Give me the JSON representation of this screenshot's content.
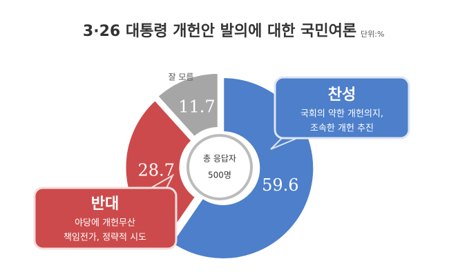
{
  "chart_data": {
    "type": "donut",
    "title": "3·26 대통령 개헌안 발의에 대한 국민여론",
    "unit": "단위:%",
    "categories": [
      "찬성",
      "반대",
      "잘 모름"
    ],
    "values": [
      59.6,
      28.7,
      11.7
    ],
    "colors": [
      "#4d7fcb",
      "#cc4a4b",
      "#a6a6a6"
    ],
    "center_label": [
      "총 응답자",
      "500명"
    ],
    "callouts": [
      [
        "국회의 약한 개헌의지,",
        "조속한 개헌 추진"
      ],
      [
        "야당에 개헌무산",
        "책임전가, 정략적 시도"
      ]
    ]
  }
}
